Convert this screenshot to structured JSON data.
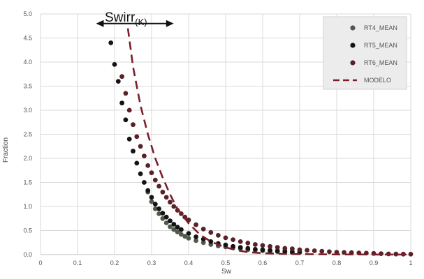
{
  "chart_data": {
    "type": "scatter",
    "xlabel": "Sw",
    "ylabel": "Fraction",
    "xlim": [
      0,
      1
    ],
    "ylim": [
      0,
      5
    ],
    "x_ticks": [
      "0",
      "0.1",
      "0.2",
      "0.3",
      "0.4",
      "0.5",
      "0.6",
      "0.7",
      "0.8",
      "0.9",
      "1"
    ],
    "y_ticks": [
      "0.0",
      "0.5",
      "1.0",
      "1.5",
      "2.0",
      "2.5",
      "3.0",
      "3.5",
      "4.0",
      "4.5",
      "5.0"
    ],
    "grid": true,
    "legend_position": "top-right",
    "annotation": {
      "text": "Swirr",
      "subscript": "(K)",
      "arrow_from_x": 0.15,
      "arrow_to_x": 0.36,
      "arrow_y": 4.8
    },
    "series": [
      {
        "name": "RT4_MEAN",
        "marker": "circle",
        "color": "#4f5a4a",
        "x": [
          0.29,
          0.3,
          0.31,
          0.32,
          0.33,
          0.34,
          0.35,
          0.36,
          0.37,
          0.38,
          0.39,
          0.4,
          0.42,
          0.44,
          0.46,
          0.48,
          0.5,
          0.52,
          0.54,
          0.56,
          0.58,
          0.6,
          0.62,
          0.64,
          0.66,
          0.68
        ],
        "y": [
          1.3,
          1.1,
          0.95,
          0.85,
          0.75,
          0.66,
          0.58,
          0.52,
          0.47,
          0.42,
          0.38,
          0.34,
          0.29,
          0.25,
          0.21,
          0.18,
          0.16,
          0.14,
          0.12,
          0.1,
          0.09,
          0.08,
          0.07,
          0.06,
          0.05,
          0.04
        ]
      },
      {
        "name": "RT5_MEAN",
        "marker": "circle",
        "color": "#141414",
        "x": [
          0.19,
          0.2,
          0.21,
          0.22,
          0.23,
          0.24,
          0.25,
          0.26,
          0.27,
          0.28,
          0.29,
          0.3,
          0.31,
          0.32,
          0.33,
          0.34,
          0.35,
          0.36,
          0.37,
          0.38,
          0.4,
          0.42,
          0.44,
          0.46,
          0.48,
          0.5,
          0.52,
          0.54,
          0.56,
          0.58,
          0.6,
          0.62,
          0.64,
          0.66,
          0.68,
          0.7
        ],
        "y": [
          4.4,
          3.95,
          3.6,
          3.15,
          2.8,
          2.4,
          2.15,
          1.9,
          1.68,
          1.5,
          1.33,
          1.19,
          1.05,
          0.95,
          0.86,
          0.78,
          0.7,
          0.63,
          0.57,
          0.52,
          0.44,
          0.37,
          0.32,
          0.27,
          0.23,
          0.2,
          0.17,
          0.15,
          0.13,
          0.11,
          0.1,
          0.09,
          0.08,
          0.07,
          0.06,
          0.05
        ]
      },
      {
        "name": "RT6_MEAN",
        "marker": "circle",
        "color": "#5a2228",
        "x": [
          0.22,
          0.23,
          0.24,
          0.25,
          0.26,
          0.27,
          0.28,
          0.29,
          0.3,
          0.31,
          0.32,
          0.33,
          0.34,
          0.35,
          0.36,
          0.37,
          0.38,
          0.39,
          0.4,
          0.42,
          0.44,
          0.46,
          0.48,
          0.5,
          0.52,
          0.54,
          0.56,
          0.58,
          0.6,
          0.62,
          0.64,
          0.66,
          0.68,
          0.7,
          0.72,
          0.74,
          0.76,
          0.78,
          0.8,
          0.82,
          0.84,
          0.86,
          0.88,
          0.9,
          0.92,
          0.94,
          0.96,
          0.98,
          1.0
        ],
        "y": [
          3.7,
          3.35,
          3.0,
          2.7,
          2.45,
          2.25,
          2.05,
          1.85,
          1.7,
          1.55,
          1.42,
          1.3,
          1.19,
          1.09,
          1.0,
          0.92,
          0.85,
          0.78,
          0.72,
          0.62,
          0.53,
          0.46,
          0.4,
          0.35,
          0.31,
          0.27,
          0.24,
          0.21,
          0.19,
          0.17,
          0.15,
          0.13,
          0.12,
          0.1,
          0.09,
          0.08,
          0.07,
          0.06,
          0.05,
          0.045,
          0.04,
          0.035,
          0.03,
          0.025,
          0.02,
          0.015,
          0.012,
          0.01,
          0.008
        ]
      },
      {
        "name": "MODELO",
        "marker": "line",
        "dashed": true,
        "color": "#7a1f2b",
        "x": [
          0.236,
          0.25,
          0.27,
          0.29,
          0.31,
          0.33,
          0.35,
          0.37,
          0.4,
          0.43,
          0.46,
          0.5,
          0.53,
          0.56,
          0.6,
          0.65,
          0.7,
          0.8,
          0.9,
          1.0
        ],
        "y": [
          4.7,
          3.9,
          3.1,
          2.5,
          2.0,
          1.6,
          1.25,
          0.95,
          0.65,
          0.42,
          0.27,
          0.15,
          0.09,
          0.05,
          0.03,
          0.015,
          0.008,
          0.003,
          0.001,
          0.0
        ]
      }
    ]
  }
}
